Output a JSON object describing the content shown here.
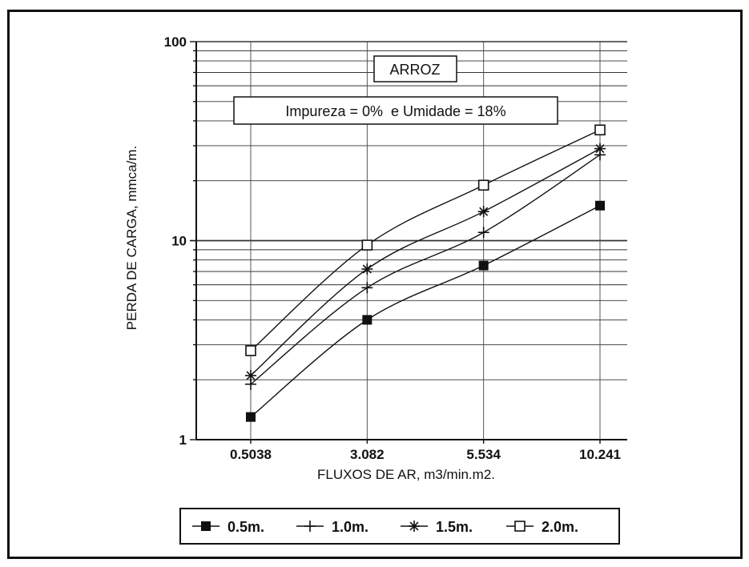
{
  "chart_data": {
    "type": "line",
    "title": "ARROZ",
    "subtitle": "Impureza = 0%  e Umidade = 18%",
    "xlabel": "FLUXOS DE AR, m3/min.m2.",
    "ylabel": "PERDA DE CARGA, mmca/m.",
    "yscale": "log",
    "ylim": [
      1,
      100
    ],
    "y_ticks": [
      "1",
      "10",
      "100"
    ],
    "categories": [
      "0.5038",
      "3.082",
      "5.534",
      "10.241"
    ],
    "grid": true,
    "legend_position": "bottom",
    "series": [
      {
        "name": "0.5m.",
        "marker": "filled-square",
        "values": [
          1.3,
          4.0,
          7.5,
          15.0
        ]
      },
      {
        "name": "1.0m.",
        "marker": "plus",
        "values": [
          1.9,
          5.8,
          11.0,
          27.0
        ]
      },
      {
        "name": "1.5m.",
        "marker": "star",
        "values": [
          2.1,
          7.2,
          14.0,
          29.0
        ]
      },
      {
        "name": "2.0m.",
        "marker": "open-square",
        "values": [
          2.8,
          9.5,
          19.0,
          36.0
        ]
      }
    ]
  }
}
